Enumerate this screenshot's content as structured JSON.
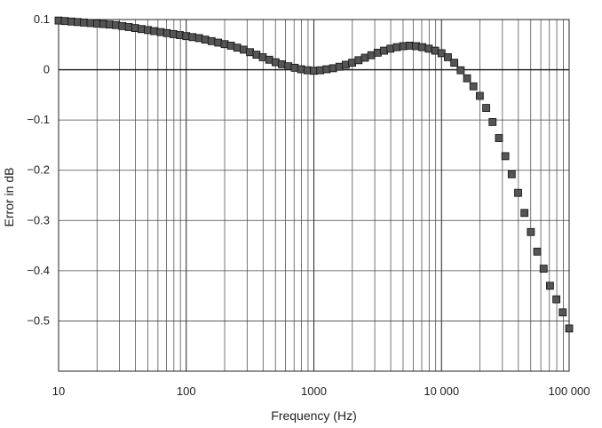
{
  "chart_data": {
    "type": "scatter",
    "title": "",
    "xlabel": "Frequency (Hz)",
    "ylabel": "Error in dB",
    "xscale": "log",
    "xlim": [
      10,
      100000
    ],
    "ylim": [
      -0.6,
      0.1
    ],
    "grid": true,
    "x_tick_values": [
      10,
      100,
      1000,
      10000,
      100000
    ],
    "x_tick_labels": [
      "10",
      "100",
      "1000",
      "10 000",
      "100 000"
    ],
    "y_tick_values": [
      0.1,
      0,
      -0.1,
      -0.2,
      -0.3,
      -0.4,
      -0.5
    ],
    "y_tick_labels": [
      "0.1",
      "0",
      "−0.1",
      "−0.2",
      "−0.3",
      "−0.4",
      "−0.5"
    ],
    "marker": "square",
    "marker_color": "#555555",
    "series": [
      {
        "x": [
          10,
          11.2,
          12.6,
          14.1,
          15.8,
          17.8,
          20,
          22.4,
          25.1,
          28.2,
          31.6,
          35.5,
          39.8,
          44.7,
          50.1,
          56.2,
          63.1,
          70.8,
          79.4,
          89.1,
          100,
          112,
          126,
          141,
          158,
          178,
          200,
          224,
          251,
          282,
          316,
          355,
          398,
          447,
          501,
          562,
          631,
          708,
          794,
          891,
          1000,
          1122,
          1259,
          1413,
          1585,
          1778,
          1995,
          2239,
          2512,
          2818,
          3162,
          3548,
          3981,
          4467,
          5012,
          5623,
          6310,
          7079,
          7943,
          8913,
          10000,
          11220,
          12590,
          14130,
          15850,
          17780,
          19950,
          22390,
          25120,
          28180,
          31620,
          35480,
          39810,
          44670,
          50120,
          56230,
          63100,
          70790,
          79430,
          89130,
          100000
        ],
        "y": [
          0.098,
          0.097,
          0.096,
          0.095,
          0.094,
          0.093,
          0.092,
          0.091,
          0.09,
          0.089,
          0.087,
          0.085,
          0.083,
          0.081,
          0.079,
          0.077,
          0.075,
          0.073,
          0.071,
          0.069,
          0.067,
          0.065,
          0.063,
          0.06,
          0.057,
          0.054,
          0.051,
          0.048,
          0.044,
          0.04,
          0.035,
          0.03,
          0.025,
          0.02,
          0.015,
          0.011,
          0.007,
          0.004,
          0.001,
          -0.001,
          -0.002,
          -0.001,
          0.001,
          0.003,
          0.006,
          0.01,
          0.014,
          0.019,
          0.024,
          0.029,
          0.034,
          0.038,
          0.042,
          0.045,
          0.047,
          0.048,
          0.047,
          0.045,
          0.042,
          0.038,
          0.033,
          0.025,
          0.014,
          -0.001,
          -0.017,
          -0.033,
          -0.052,
          -0.076,
          -0.104,
          -0.136,
          -0.172,
          -0.208,
          -0.245,
          -0.285,
          -0.323,
          -0.362,
          -0.396,
          -0.43,
          -0.457,
          -0.483,
          -0.515
        ]
      }
    ]
  }
}
